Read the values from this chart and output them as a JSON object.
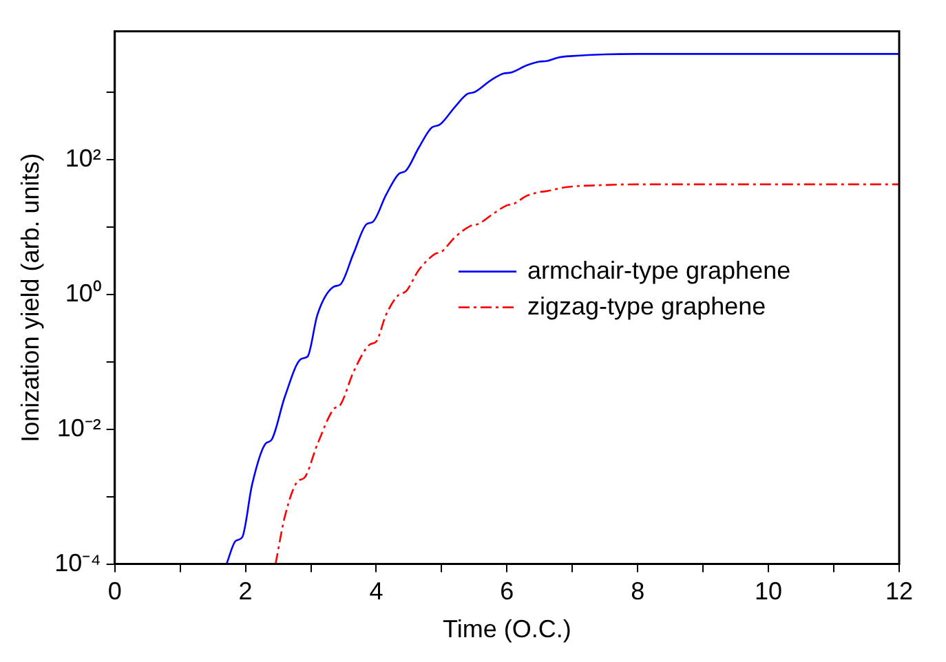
{
  "chart_data": {
    "type": "line",
    "xlabel": "Time (O.C.)",
    "ylabel": "Ionization yield (arb. units)",
    "log": "y",
    "xlim": [
      0,
      12
    ],
    "xticks": [
      0,
      {
        "value": 1,
        "label": null
      },
      2,
      {
        "value": 3,
        "label": null
      },
      4,
      {
        "value": 5,
        "label": null
      },
      6,
      {
        "value": 7,
        "label": null
      },
      8,
      {
        "value": 9,
        "label": null
      },
      10,
      {
        "value": 11,
        "label": null
      },
      12
    ],
    "ylim": [
      0.0001,
      8000
    ],
    "yticks": [
      {
        "value": 0.0001,
        "label": "10⁻⁴"
      },
      {
        "value": 0.001,
        "label": null
      },
      {
        "value": 0.01,
        "label": "10⁻²"
      },
      {
        "value": 0.1,
        "label": null
      },
      {
        "value": 1,
        "label": "10⁰"
      },
      {
        "value": 10,
        "label": null
      },
      {
        "value": 100,
        "label": "10²"
      },
      {
        "value": 1000,
        "label": null
      }
    ],
    "grid": false,
    "legend": "right",
    "marker": "none",
    "series": [
      {
        "name": "armchair-type graphene",
        "color": "#0000ff",
        "line_style": "solid",
        "x": [
          1.71,
          1.85,
          1.95,
          2.1,
          2.3,
          2.4,
          2.6,
          2.85,
          2.95,
          3.1,
          3.35,
          3.45,
          3.65,
          3.85,
          3.95,
          4.15,
          4.35,
          4.45,
          4.65,
          4.85,
          4.97,
          5.2,
          5.4,
          5.5,
          5.75,
          5.95,
          6.05,
          6.3,
          6.5,
          6.6,
          6.8,
          7.0,
          7.5,
          8,
          12
        ],
        "values": [
          0.0001,
          0.00022,
          0.00025,
          0.0015,
          0.006,
          0.007,
          0.03,
          0.11,
          0.12,
          0.5,
          1.3,
          1.4,
          4,
          11,
          12,
          30,
          62,
          68,
          150,
          300,
          330,
          600,
          950,
          1000,
          1500,
          1900,
          1950,
          2500,
          2850,
          2900,
          3300,
          3450,
          3650,
          3700,
          3700
        ]
      },
      {
        "name": "zigzag-type graphene",
        "color": "#ff0000",
        "line_style": "dashed",
        "x": [
          2.46,
          2.6,
          2.8,
          2.9,
          3.1,
          3.35,
          3.45,
          3.65,
          3.9,
          4.0,
          4.15,
          4.35,
          4.45,
          4.65,
          4.9,
          5.0,
          5.2,
          5.45,
          5.55,
          5.8,
          6.0,
          6.1,
          6.3,
          6.5,
          6.6,
          6.9,
          7.5,
          8,
          12
        ],
        "values": [
          0.0001,
          0.0005,
          0.0017,
          0.0019,
          0.006,
          0.02,
          0.023,
          0.07,
          0.18,
          0.2,
          0.5,
          1.0,
          1.1,
          2.3,
          4,
          4.3,
          7,
          10.5,
          11,
          16,
          21,
          22,
          29,
          33,
          34,
          39,
          42,
          43,
          43
        ]
      }
    ]
  }
}
